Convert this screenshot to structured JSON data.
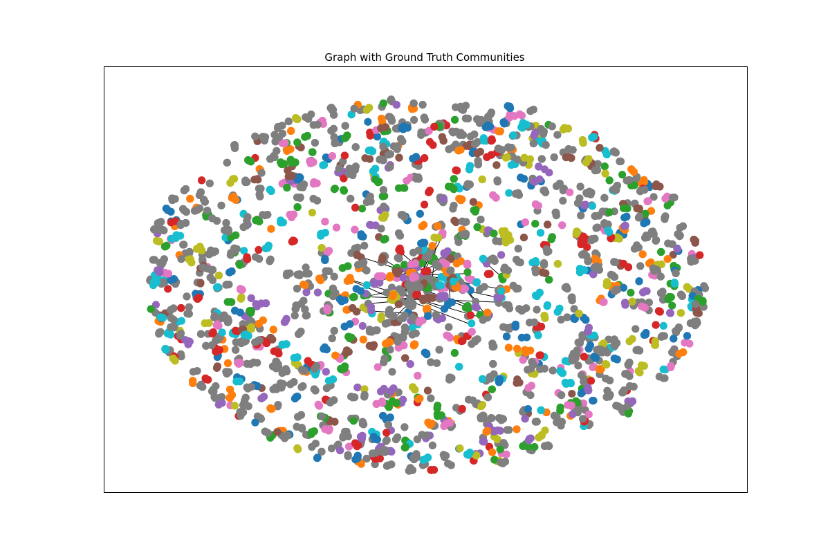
{
  "chart_data": {
    "type": "scatter",
    "subtype": "network-graph",
    "title": "Graph with Ground Truth Communities",
    "xlabel": "",
    "ylabel": "",
    "axes_visible": false,
    "grid": false,
    "legend": "none",
    "xlim": [
      -1.0,
      1.0
    ],
    "ylim": [
      -1.0,
      1.0
    ],
    "node_count": 2800,
    "node_colors": [
      "#1f77b4",
      "#ff7f0e",
      "#2ca02c",
      "#d62728",
      "#9467bd",
      "#8c564b",
      "#e377c2",
      "#7f7f7f",
      "#bcbd22",
      "#17becf"
    ],
    "edge_color": "#000000",
    "layout": "elliptical cloud with dense core of connected nodes near the center"
  }
}
